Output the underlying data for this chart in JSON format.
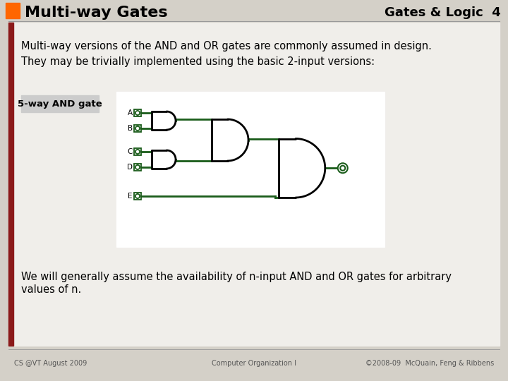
{
  "title": "Multi-way Gates",
  "subtitle": "Gates & Logic  4",
  "orange_color": "#FF6600",
  "slide_bg": "#d4d0c8",
  "content_bg": "#f0eeea",
  "dark_red_strip": "#8B1A1A",
  "text1": "Multi-way versions of the AND and OR gates are commonly assumed in design.",
  "text2": "They may be trivially implemented using the basic 2-input versions:",
  "label_box": "5-way AND gate",
  "text3a": "We will generally assume the availability of n-input AND and OR gates for arbitrary",
  "text3b": "values of n.",
  "footer_left": "CS @VT August 2009",
  "footer_center": "Computer Organization I",
  "footer_right": "©2008-09  McQuain, Feng & Ribbens",
  "gate_color": "#1a5c1a",
  "gate_lw": 2.0
}
